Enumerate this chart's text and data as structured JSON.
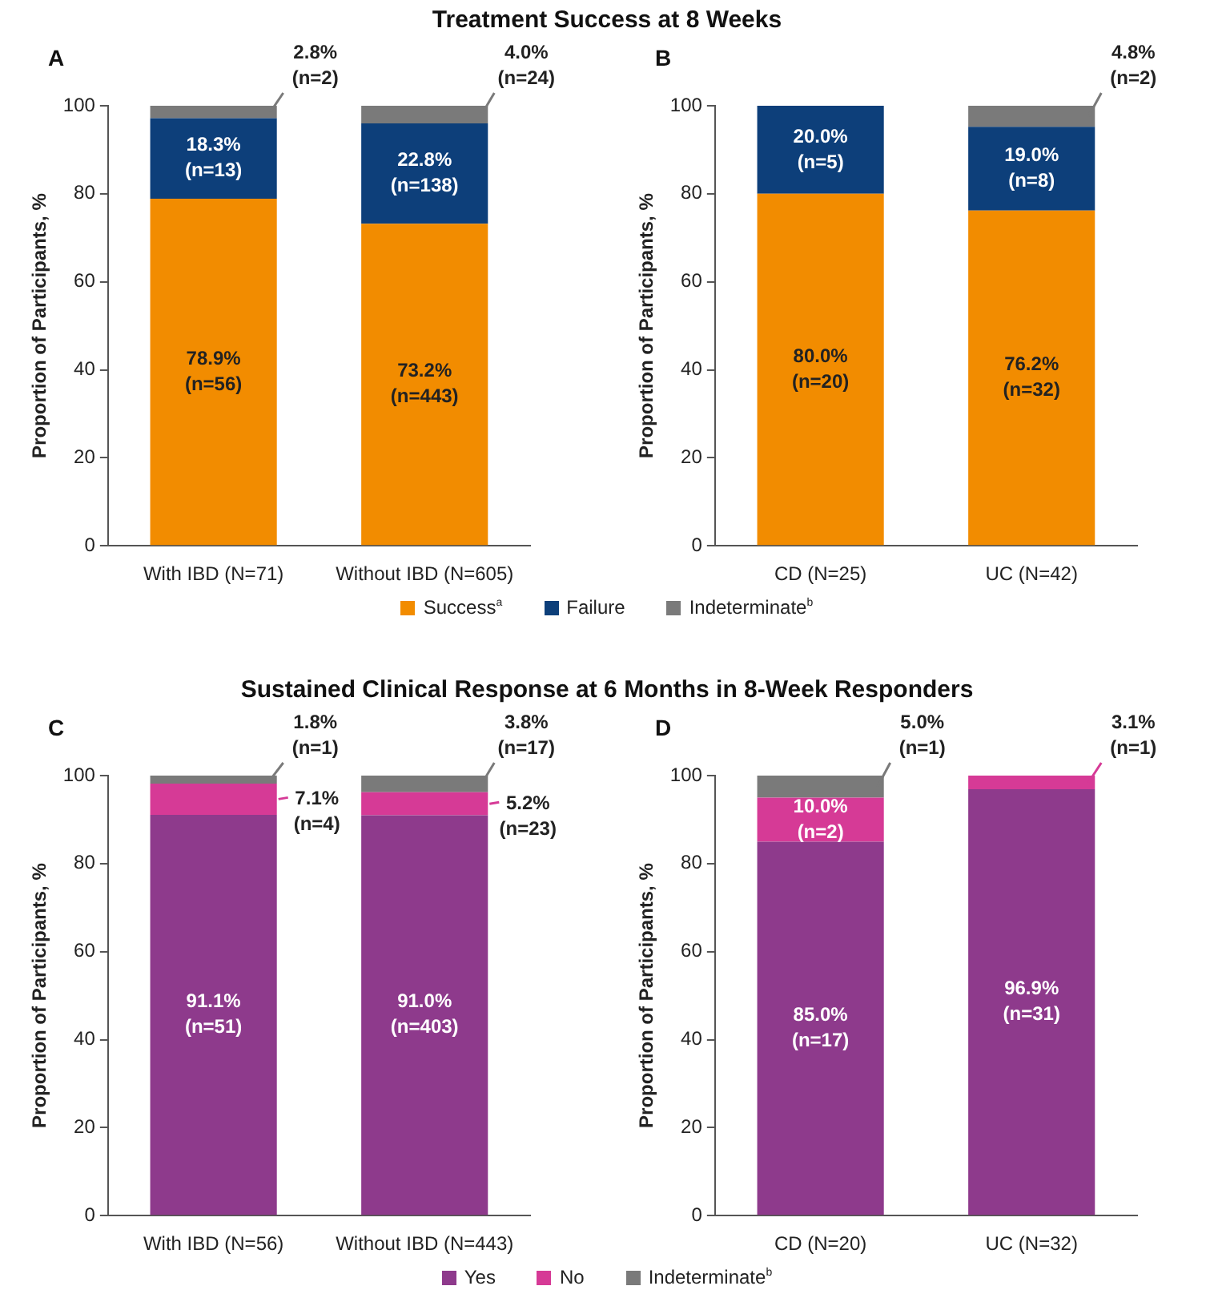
{
  "chart_data": [
    {
      "type": "bar",
      "title": "Treatment Success at 8 Weeks",
      "subtitle": "A",
      "ylabel": "Proportion of Participants, %",
      "categories": [
        "With IBD (N=71)",
        "Without IBD (N=605)"
      ],
      "stacked": true,
      "ylim": [
        0,
        100
      ],
      "yticks": [
        0,
        20,
        40,
        60,
        80,
        100
      ],
      "series": [
        {
          "color": "#f28c00",
          "values": [
            78.9,
            73.2
          ],
          "value_labels": [
            "78.9%\n(n=56)",
            "73.2%\n(n=443)"
          ]
        },
        {
          "color": "#0d3f7a",
          "values": [
            18.3,
            22.8
          ],
          "value_labels": [
            "18.3%\n(n=13)",
            "22.8%\n(n=138)"
          ]
        },
        {
          "color": "#7a7a7a",
          "values": [
            2.8,
            4.0
          ],
          "value_labels": [
            "2.8%\n(n=2)",
            "4.0%\n(n=24)"
          ]
        }
      ]
    },
    {
      "type": "bar",
      "subtitle": "B",
      "ylabel": "Proportion of Participants, %",
      "categories": [
        "CD (N=25)",
        "UC (N=42)"
      ],
      "stacked": true,
      "ylim": [
        0,
        100
      ],
      "yticks": [
        0,
        20,
        40,
        60,
        80,
        100
      ],
      "legend": "bottom",
      "series": [
        {
          "name": "Success$^{a}$",
          "color": "#f28c00",
          "values": [
            80.0,
            76.2
          ],
          "value_labels": [
            "80.0%\n(n=20)",
            "76.2%\n(n=32)"
          ]
        },
        {
          "name": "Failure",
          "color": "#0d3f7a",
          "values": [
            20.0,
            19.0
          ],
          "value_labels": [
            "20.0%\n(n=5)",
            "19.0%\n(n=8)"
          ]
        },
        {
          "name": "Indeterminate$^{b}$",
          "color": "#7a7a7a",
          "values": [
            null,
            4.8
          ],
          "value_labels": [
            null,
            "4.8%\n(n=2)"
          ]
        }
      ]
    },
    {
      "type": "bar",
      "title": "Sustained Clinical Response at 6 Months in 8-Week Responders",
      "subtitle": "C",
      "ylabel": "Proportion of Participants, %",
      "categories": [
        "With IBD (N=56)",
        "Without IBD (N=443)"
      ],
      "stacked": true,
      "ylim": [
        0,
        100
      ],
      "yticks": [
        0,
        20,
        40,
        60,
        80,
        100
      ],
      "series": [
        {
          "color": "#8e3a8c",
          "values": [
            91.1,
            91.0
          ],
          "value_labels": [
            "91.1%\n(n=51)",
            "91.0%\n(n=403)"
          ]
        },
        {
          "color": "#d63a96",
          "values": [
            7.1,
            5.2
          ],
          "value_labels": [
            "7.1%\n(n=4)",
            "5.2%\n(n=23)"
          ]
        },
        {
          "color": "#7a7a7a",
          "values": [
            1.8,
            3.8
          ],
          "value_labels": [
            "1.8%\n(n=1)",
            "3.8%\n(n=17)"
          ]
        }
      ]
    },
    {
      "type": "bar",
      "subtitle": "D",
      "ylabel": "Proportion of Participants, %",
      "categories": [
        "CD (N=20)",
        "UC (N=32)"
      ],
      "stacked": true,
      "ylim": [
        0,
        100
      ],
      "yticks": [
        0,
        20,
        40,
        60,
        80,
        100
      ],
      "legend": "bottom",
      "series": [
        {
          "name": "Yes",
          "color": "#8e3a8c",
          "values": [
            85.0,
            96.9
          ],
          "value_labels": [
            "85.0%\n(n=17)",
            "96.9%\n(n=31)"
          ]
        },
        {
          "name": "No",
          "color": "#d63a96",
          "values": [
            10.0,
            3.1
          ],
          "value_labels": [
            "10.0%\n(n=2)",
            "3.1%\n(n=1)"
          ]
        },
        {
          "name": "Indeterminate$^{b}$",
          "color": "#7a7a7a",
          "values": [
            5.0,
            null
          ],
          "value_labels": [
            "5.0%\n(n=1)",
            null
          ]
        }
      ]
    }
  ]
}
